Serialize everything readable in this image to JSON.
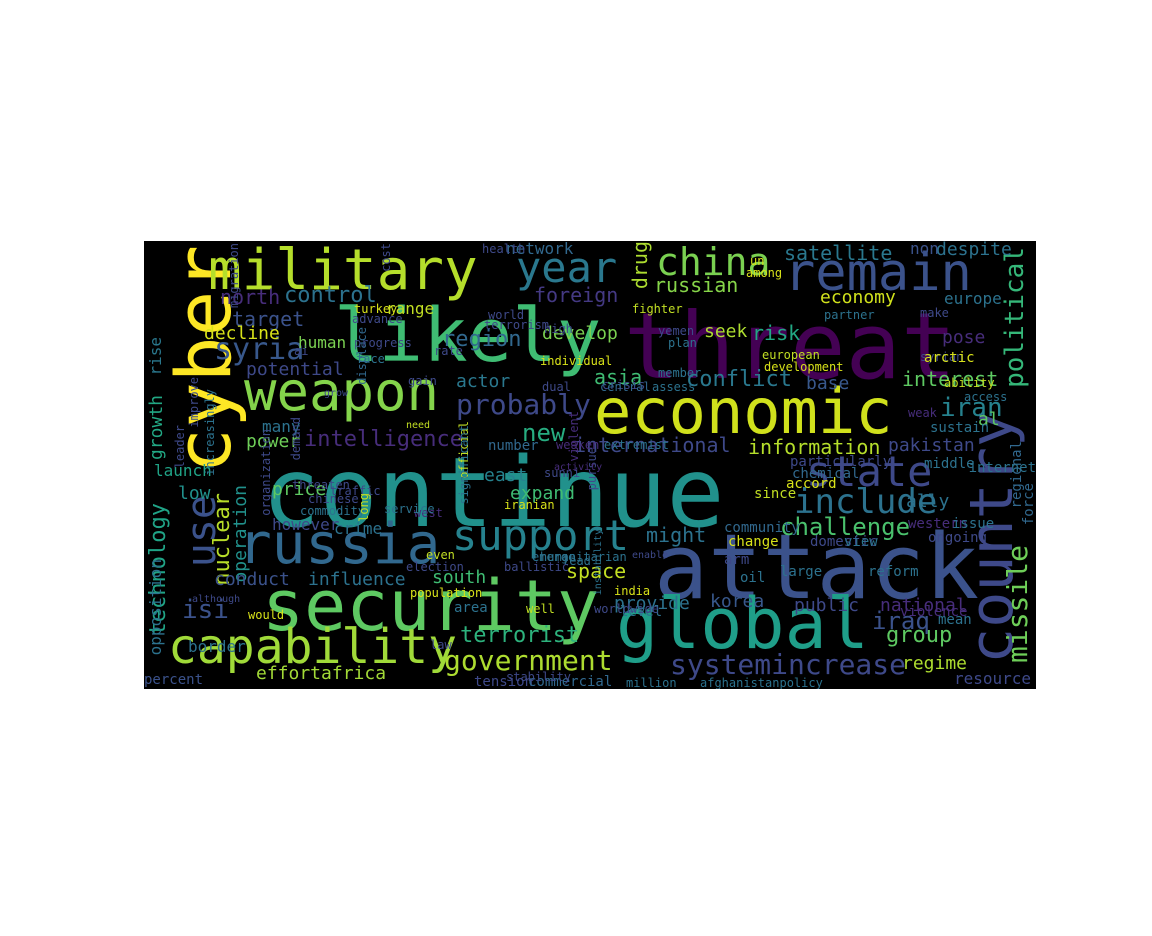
{
  "background": "#000000",
  "page_background": "#ffffff",
  "colormap": "viridis",
  "words": [
    {
      "text": "continue",
      "color": "#21918c",
      "orientation": "horizontal"
    },
    {
      "text": "threat",
      "color": "#440154",
      "orientation": "horizontal"
    },
    {
      "text": "attack",
      "color": "#3b528b",
      "orientation": "horizontal"
    },
    {
      "text": "cyber",
      "color": "#fde725",
      "orientation": "vertical"
    },
    {
      "text": "economic",
      "color": "#d0e11c",
      "orientation": "horizontal"
    },
    {
      "text": "security",
      "color": "#5ec962",
      "orientation": "horizontal"
    },
    {
      "text": "likely",
      "color": "#3fbc73",
      "orientation": "horizontal"
    },
    {
      "text": "military",
      "color": "#b5de2b",
      "orientation": "horizontal"
    },
    {
      "text": "global",
      "color": "#1f9e89",
      "orientation": "horizontal"
    },
    {
      "text": "russia",
      "color": "#31688e",
      "orientation": "horizontal"
    },
    {
      "text": "remain",
      "color": "#3b528b",
      "orientation": "horizontal"
    },
    {
      "text": "country",
      "color": "#3e4989",
      "orientation": "vertical"
    },
    {
      "text": "capability",
      "color": "#a0da39",
      "orientation": "horizontal"
    },
    {
      "text": "weapon",
      "color": "#84d44b",
      "orientation": "horizontal"
    },
    {
      "text": "support",
      "color": "#26828e",
      "orientation": "horizontal"
    },
    {
      "text": "state",
      "color": "#3e4989",
      "orientation": "horizontal"
    },
    {
      "text": "year",
      "color": "#2a788e",
      "orientation": "horizontal"
    },
    {
      "text": "china",
      "color": "#7ad151",
      "orientation": "horizontal"
    },
    {
      "text": "use",
      "color": "#3b528b",
      "orientation": "vertical"
    },
    {
      "text": "government",
      "color": "#addc30",
      "orientation": "horizontal"
    },
    {
      "text": "include",
      "color": "#2c728e",
      "orientation": "horizontal"
    },
    {
      "text": "missile",
      "color": "#6ece58",
      "orientation": "vertical"
    },
    {
      "text": "political",
      "color": "#35b779",
      "orientation": "vertical"
    },
    {
      "text": "probably",
      "color": "#3e4989",
      "orientation": "horizontal"
    },
    {
      "text": "intelligence",
      "color": "#472d7b",
      "orientation": "horizontal"
    },
    {
      "text": "syria",
      "color": "#38588c",
      "orientation": "horizontal"
    },
    {
      "text": "isi",
      "color": "#3b528b",
      "orientation": "horizontal"
    },
    {
      "text": "new",
      "color": "#27ad81",
      "orientation": "horizontal"
    },
    {
      "text": "challenge",
      "color": "#4ac16d",
      "orientation": "horizontal"
    },
    {
      "text": "terrorist",
      "color": "#2db27d",
      "orientation": "horizontal"
    },
    {
      "text": "systemincrease",
      "color": "#3e4989",
      "orientation": "horizontal"
    },
    {
      "text": "nuclear",
      "color": "#b8de29",
      "orientation": "vertical"
    },
    {
      "text": "technology",
      "color": "#20a386",
      "orientation": "vertical"
    },
    {
      "text": "iraq",
      "color": "#3b528b",
      "orientation": "horizontal"
    },
    {
      "text": "iran",
      "color": "#26828e",
      "orientation": "horizontal"
    },
    {
      "text": "group",
      "color": "#5ec962",
      "orientation": "horizontal"
    },
    {
      "text": "control",
      "color": "#2c728e",
      "orientation": "horizontal"
    },
    {
      "text": "region",
      "color": "#31688e",
      "orientation": "horizontal"
    },
    {
      "text": "conflict",
      "color": "#2a788e",
      "orientation": "horizontal"
    },
    {
      "text": "international",
      "color": "#3e4989",
      "orientation": "horizontal"
    },
    {
      "text": "information",
      "color": "#b5de2b",
      "orientation": "horizontal"
    },
    {
      "text": "interest",
      "color": "#5ec962",
      "orientation": "horizontal"
    },
    {
      "text": "effortafrica",
      "color": "#a2da37",
      "orientation": "horizontal"
    },
    {
      "text": "regime",
      "color": "#addc30",
      "orientation": "horizontal"
    },
    {
      "text": "operation",
      "color": "#21918c",
      "orientation": "vertical"
    },
    {
      "text": "economy",
      "color": "#d0e11c",
      "orientation": "horizontal"
    },
    {
      "text": "foreign",
      "color": "#443983",
      "orientation": "horizontal"
    },
    {
      "text": "drug",
      "color": "#addc30",
      "orientation": "vertical"
    },
    {
      "text": "russian",
      "color": "#86d549",
      "orientation": "horizontal"
    },
    {
      "text": "satellite",
      "color": "#2a788e",
      "orientation": "horizontal"
    },
    {
      "text": "space",
      "color": "#c2df23",
      "orientation": "horizontal"
    },
    {
      "text": "might",
      "color": "#2c728e",
      "orientation": "horizontal"
    },
    {
      "text": "asia",
      "color": "#3fbc73",
      "orientation": "horizontal"
    },
    {
      "text": "seek",
      "color": "#addc30",
      "orientation": "horizontal"
    },
    {
      "text": "risk",
      "color": "#22a884",
      "orientation": "horizontal"
    },
    {
      "text": "east",
      "color": "#26828e",
      "orientation": "horizontal"
    },
    {
      "text": "expand",
      "color": "#3fbc73",
      "orientation": "horizontal"
    },
    {
      "text": "target",
      "color": "#3b528b",
      "orientation": "horizontal"
    },
    {
      "text": "north",
      "color": "#472d7b",
      "orientation": "horizontal"
    },
    {
      "text": "develop",
      "color": "#7ad151",
      "orientation": "horizontal"
    },
    {
      "text": "actor",
      "color": "#2a788e",
      "orientation": "horizontal"
    },
    {
      "text": "base",
      "color": "#38588c",
      "orientation": "horizontal"
    },
    {
      "text": "potential",
      "color": "#3e4989",
      "orientation": "horizontal"
    },
    {
      "text": "decline",
      "color": "#d8e219",
      "orientation": "horizontal"
    },
    {
      "text": "conduct",
      "color": "#3b528b",
      "orientation": "horizontal"
    },
    {
      "text": "influence",
      "color": "#2c728e",
      "orientation": "horizontal"
    },
    {
      "text": "south",
      "color": "#3fbc73",
      "orientation": "horizontal"
    },
    {
      "text": "korea",
      "color": "#38588c",
      "orientation": "horizontal"
    },
    {
      "text": "provide",
      "color": "#2c728e",
      "orientation": "horizontal"
    },
    {
      "text": "public",
      "color": "#3e4989",
      "orientation": "horizontal"
    },
    {
      "text": "national",
      "color": "#472d7b",
      "orientation": "horizontal"
    },
    {
      "text": "pose",
      "color": "#472d7b",
      "orientation": "horizontal"
    },
    {
      "text": "pakistan",
      "color": "#3e4989",
      "orientation": "horizontal"
    },
    {
      "text": "ally",
      "color": "#2c728e",
      "orientation": "horizontal"
    },
    {
      "text": "europe",
      "color": "#2c728e",
      "orientation": "horizontal"
    },
    {
      "text": "al",
      "color": "#5ec962",
      "orientation": "horizontal"
    },
    {
      "text": "non",
      "color": "#3b528b",
      "orientation": "horizontal"
    },
    {
      "text": "despite",
      "color": "#2c728e",
      "orientation": "horizontal"
    },
    {
      "text": "network",
      "color": "#31688e",
      "orientation": "horizontal"
    },
    {
      "text": "low",
      "color": "#21918c",
      "orientation": "horizontal"
    },
    {
      "text": "power",
      "color": "#6ece58",
      "orientation": "horizontal"
    },
    {
      "text": "launch",
      "color": "#20a386",
      "orientation": "horizontal"
    },
    {
      "text": "growth",
      "color": "#22a884",
      "orientation": "vertical"
    },
    {
      "text": "rise",
      "color": "#2a788e",
      "orientation": "vertical"
    },
    {
      "text": "opposition",
      "color": "#2c728e",
      "orientation": "vertical"
    },
    {
      "text": "price",
      "color": "#5ec962",
      "orientation": "horizontal"
    },
    {
      "text": "many",
      "color": "#2c728e",
      "orientation": "horizontal"
    },
    {
      "text": "crime",
      "color": "#2c728e",
      "orientation": "horizontal"
    },
    {
      "text": "however",
      "color": "#3e4989",
      "orientation": "horizontal"
    },
    {
      "text": "human",
      "color": "#7ad151",
      "orientation": "horizontal"
    },
    {
      "text": "number",
      "color": "#31688e",
      "orientation": "horizontal"
    },
    {
      "text": "border",
      "color": "#2c728e",
      "orientation": "horizontal"
    },
    {
      "text": "percent",
      "color": "#3b528b",
      "orientation": "horizontal"
    },
    {
      "text": "tension",
      "color": "#3e4989",
      "orientation": "horizontal"
    },
    {
      "text": "commercial",
      "color": "#31688e",
      "orientation": "horizontal"
    },
    {
      "text": "range",
      "color": "#c2df23",
      "orientation": "horizontal"
    },
    {
      "text": "area",
      "color": "#2c728e",
      "orientation": "horizontal"
    },
    {
      "text": "level",
      "color": "#2c728e",
      "orientation": "horizontal"
    },
    {
      "text": "oil",
      "color": "#2c728e",
      "orientation": "horizontal"
    },
    {
      "text": "resource",
      "color": "#3e4989",
      "orientation": "horizontal"
    },
    {
      "text": "force",
      "color": "#31688e",
      "orientation": "vertical"
    },
    {
      "text": "regional",
      "color": "#31688e",
      "orientation": "vertical"
    },
    {
      "text": "community",
      "color": "#31688e",
      "orientation": "horizontal"
    },
    {
      "text": "change",
      "color": "#d8e219",
      "orientation": "horizontal"
    },
    {
      "text": "domestic",
      "color": "#3e4989",
      "orientation": "horizontal"
    },
    {
      "text": "view",
      "color": "#2c728e",
      "orientation": "horizontal"
    },
    {
      "text": "western",
      "color": "#472d7b",
      "orientation": "horizontal"
    },
    {
      "text": "ongoing",
      "color": "#3e4989",
      "orientation": "horizontal"
    },
    {
      "text": "issue",
      "color": "#2c728e",
      "orientation": "horizontal"
    },
    {
      "text": "arm",
      "color": "#3e4989",
      "orientation": "horizontal"
    },
    {
      "text": "large",
      "color": "#2c728e",
      "orientation": "horizontal"
    },
    {
      "text": "reform",
      "color": "#2c728e",
      "orientation": "horizontal"
    },
    {
      "text": "violence",
      "color": "#472d7b",
      "orientation": "horizontal"
    },
    {
      "text": "mean",
      "color": "#2c728e",
      "orientation": "horizontal"
    },
    {
      "text": "accord",
      "color": "#d8e219",
      "orientation": "horizontal"
    },
    {
      "text": "since",
      "color": "#c2df23",
      "orientation": "horizontal"
    },
    {
      "text": "middle",
      "color": "#2c728e",
      "orientation": "horizontal"
    },
    {
      "text": "particularly",
      "color": "#3e4989",
      "orientation": "horizontal"
    },
    {
      "text": "chemical",
      "color": "#31688e",
      "orientation": "horizontal"
    },
    {
      "text": "internet",
      "color": "#2c728e",
      "orientation": "horizontal"
    },
    {
      "text": "sustain",
      "color": "#2c728e",
      "orientation": "horizontal"
    },
    {
      "text": "weak",
      "color": "#472d7b",
      "orientation": "horizontal"
    },
    {
      "text": "access",
      "color": "#2c728e",
      "orientation": "horizontal"
    },
    {
      "text": "ability",
      "color": "#c2df23",
      "orientation": "horizontal"
    },
    {
      "text": "syrian",
      "color": "#3e4989",
      "orientation": "horizontal"
    },
    {
      "text": "arctic",
      "color": "#d8e219",
      "orientation": "horizontal"
    },
    {
      "text": "european",
      "color": "#c2df23",
      "orientation": "horizontal"
    },
    {
      "text": "development",
      "color": "#d8e219",
      "orientation": "horizontal"
    },
    {
      "text": "partner",
      "color": "#2c728e",
      "orientation": "horizontal"
    },
    {
      "text": "make",
      "color": "#3e4989",
      "orientation": "horizontal"
    },
    {
      "text": "fighter",
      "color": "#c2df23",
      "orientation": "horizontal"
    },
    {
      "text": "un",
      "color": "#d8e219",
      "orientation": "horizontal"
    },
    {
      "text": "among",
      "color": "#d8e219",
      "orientation": "horizontal"
    },
    {
      "text": "yemen",
      "color": "#3e4989",
      "orientation": "horizontal"
    },
    {
      "text": "member",
      "color": "#2c728e",
      "orientation": "horizontal"
    },
    {
      "text": "plan",
      "color": "#2c728e",
      "orientation": "horizontal"
    },
    {
      "text": "assess",
      "color": "#2c728e",
      "orientation": "horizontal"
    },
    {
      "text": "crisis",
      "color": "#3e4989",
      "orientation": "horizontal"
    },
    {
      "text": "central",
      "color": "#31688e",
      "orientation": "horizontal"
    },
    {
      "text": "dual",
      "color": "#3e4989",
      "orientation": "horizontal"
    },
    {
      "text": "individual",
      "color": "#d8e219",
      "orientation": "horizontal"
    },
    {
      "text": "terrorism",
      "color": "#3e4989",
      "orientation": "horizontal"
    },
    {
      "text": "world",
      "color": "#3e4989",
      "orientation": "horizontal"
    },
    {
      "text": "high",
      "color": "#3e4989",
      "orientation": "horizontal"
    },
    {
      "text": "health",
      "color": "#3e4989",
      "orientation": "horizontal"
    },
    {
      "text": "turkey",
      "color": "#d8e219",
      "orientation": "horizontal"
    },
    {
      "text": "advance",
      "color": "#3e4989",
      "orientation": "horizontal"
    },
    {
      "text": "displace",
      "color": "#31688e",
      "orientation": "vertical"
    },
    {
      "text": "ai",
      "color": "#3e4989",
      "orientation": "horizontal"
    },
    {
      "text": "progress",
      "color": "#3e4989",
      "orientation": "horizontal"
    },
    {
      "text": "rate",
      "color": "#3e4989",
      "orientation": "horizontal"
    },
    {
      "text": "face",
      "color": "#2c728e",
      "orientation": "horizontal"
    },
    {
      "text": "need",
      "color": "#c2df23",
      "orientation": "horizontal"
    },
    {
      "text": "grow",
      "color": "#3e4989",
      "orientation": "horizontal"
    },
    {
      "text": "gain",
      "color": "#3e4989",
      "orientation": "horizontal"
    },
    {
      "text": "official",
      "color": "#c2df23",
      "orientation": "vertical"
    },
    {
      "text": "significant",
      "color": "#2c728e",
      "orientation": "vertical"
    },
    {
      "text": "violent",
      "color": "#472d7b",
      "orientation": "vertical"
    },
    {
      "text": "pursue",
      "color": "#3e4989",
      "orientation": "vertical"
    },
    {
      "text": "sunni",
      "color": "#3e4989",
      "orientation": "horizontal"
    },
    {
      "text": "traffic",
      "color": "#3e4989",
      "orientation": "horizontal"
    },
    {
      "text": "extremist",
      "color": "#2c728e",
      "orientation": "horizontal"
    },
    {
      "text": "weaken",
      "color": "#472d7b",
      "orientation": "horizontal"
    },
    {
      "text": "activity",
      "color": "#472d7b",
      "orientation": "horizontal"
    },
    {
      "text": "threaten",
      "color": "#3e4989",
      "orientation": "horizontal"
    },
    {
      "text": "commodity",
      "color": "#2c728e",
      "orientation": "horizontal"
    },
    {
      "text": "chinese",
      "color": "#3e4989",
      "orientation": "horizontal"
    },
    {
      "text": "long",
      "color": "#c2df23",
      "orientation": "vertical"
    },
    {
      "text": "iranian",
      "color": "#d8e219",
      "orientation": "horizontal"
    },
    {
      "text": "west",
      "color": "#472d7b",
      "orientation": "horizontal"
    },
    {
      "text": "emerge",
      "color": "#2c728e",
      "orientation": "horizontal"
    },
    {
      "text": "lead",
      "color": "#2c728e",
      "orientation": "horizontal"
    },
    {
      "text": "even",
      "color": "#c2df23",
      "orientation": "horizontal"
    },
    {
      "text": "humanitarian",
      "color": "#2c728e",
      "orientation": "horizontal"
    },
    {
      "text": "instability",
      "color": "#2c728e",
      "orientation": "vertical"
    },
    {
      "text": "enable",
      "color": "#3e4989",
      "orientation": "horizontal"
    },
    {
      "text": "election",
      "color": "#3e4989",
      "orientation": "horizontal"
    },
    {
      "text": "service",
      "color": "#2c728e",
      "orientation": "horizontal"
    },
    {
      "text": "population",
      "color": "#d8e219",
      "orientation": "horizontal"
    },
    {
      "text": "well",
      "color": "#c2df23",
      "orientation": "horizontal"
    },
    {
      "text": "worldwide",
      "color": "#3e4989",
      "orientation": "horizontal"
    },
    {
      "text": "ballistic",
      "color": "#3e4989",
      "orientation": "horizontal"
    },
    {
      "text": "india",
      "color": "#d8e219",
      "orientation": "horizontal"
    },
    {
      "text": "law",
      "color": "#3e4989",
      "orientation": "horizontal"
    },
    {
      "text": "stability",
      "color": "#3e4989",
      "orientation": "horizontal"
    },
    {
      "text": "million",
      "color": "#2c728e",
      "orientation": "horizontal"
    },
    {
      "text": "afghanistanpolicy",
      "color": "#2c728e",
      "orientation": "horizontal"
    },
    {
      "text": "would",
      "color": "#d8e219",
      "orientation": "horizontal"
    },
    {
      "text": "although",
      "color": "#3e4989",
      "orientation": "horizontal"
    },
    {
      "text": "improve",
      "color": "#3e4989",
      "orientation": "vertical"
    },
    {
      "text": "increasingly",
      "color": "#2c728e",
      "orientation": "vertical"
    },
    {
      "text": "leader",
      "color": "#3e4989",
      "orientation": "vertical"
    },
    {
      "text": "organization",
      "color": "#3e4989",
      "orientation": "vertical"
    },
    {
      "text": "demand",
      "color": "#3e4989",
      "orientation": "vertical"
    },
    {
      "text": "migration",
      "color": "#3e4989",
      "orientation": "vertical"
    },
    {
      "text": "cost",
      "color": "#3e4989",
      "orientation": "vertical"
    }
  ]
}
